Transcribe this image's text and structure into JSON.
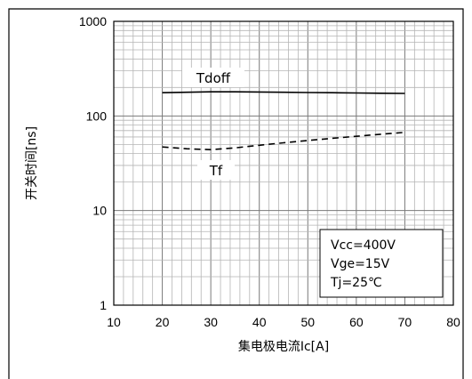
{
  "chart_data": {
    "type": "line",
    "xlabel": "集电极电流Ic[A]",
    "ylabel": "开关时间[ns]",
    "xlim": [
      10,
      80
    ],
    "ylim": [
      1,
      1000
    ],
    "yscale": "log",
    "grid": true,
    "x_ticks": [
      "10",
      "20",
      "30",
      "40",
      "50",
      "60",
      "70",
      "80"
    ],
    "y_ticks": [
      "1",
      "10",
      "100",
      "1000"
    ],
    "series": [
      {
        "name": "Tdoff",
        "style": "solid",
        "x": [
          20,
          25,
          30,
          35,
          40,
          45,
          50,
          55,
          60,
          65,
          70
        ],
        "y": [
          176,
          178,
          180,
          180,
          179,
          178,
          177,
          176,
          175,
          174,
          173
        ]
      },
      {
        "name": "Tf",
        "style": "dashed",
        "x": [
          20,
          25,
          30,
          35,
          40,
          45,
          50,
          55,
          60,
          65,
          70
        ],
        "y": [
          47,
          45,
          44,
          46,
          49,
          52,
          55,
          58,
          61,
          64,
          67
        ]
      }
    ],
    "annotations": [
      "Vcc=400V",
      "Vge=15V",
      "Tj=25℃"
    ]
  }
}
